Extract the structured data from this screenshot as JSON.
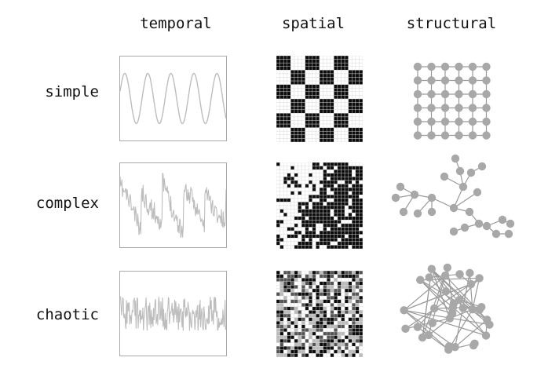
{
  "columns": [
    "temporal",
    "spatial",
    "structural"
  ],
  "rows": [
    "simple",
    "complex",
    "chaotic"
  ],
  "colors": {
    "line": "#bdbdbd",
    "frame": "#aaaaaa",
    "node": "#a8a8a8",
    "edge": "#9a9a9a",
    "dark": "#0c0c0c",
    "grid": "#d8d8d8"
  }
}
